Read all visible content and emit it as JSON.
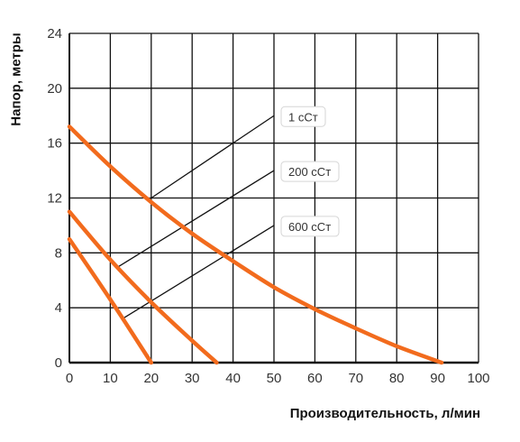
{
  "chart_data": {
    "type": "line",
    "xlabel": "Производительность, л/мин",
    "ylabel": "Напор, метры",
    "xlim": [
      0,
      100
    ],
    "ylim": [
      0,
      24
    ],
    "x_ticks": [
      0,
      10,
      20,
      30,
      40,
      50,
      60,
      70,
      80,
      90,
      100
    ],
    "y_ticks": [
      0,
      4,
      8,
      12,
      16,
      20,
      24
    ],
    "grid": true,
    "line_color": "#f26b1d",
    "series": [
      {
        "name": "1 сСт",
        "x": [
          0,
          10,
          20,
          30,
          40,
          50,
          60,
          70,
          80,
          91
        ],
        "y": [
          17.2,
          14.3,
          11.7,
          9.4,
          7.4,
          5.5,
          3.9,
          2.5,
          1.2,
          0
        ]
      },
      {
        "name": "200 сСт",
        "x": [
          0,
          10,
          20,
          30,
          36
        ],
        "y": [
          11,
          7.5,
          4.4,
          1.6,
          0
        ]
      },
      {
        "name": "600 сСт",
        "x": [
          0,
          10,
          20
        ],
        "y": [
          9,
          4.6,
          0
        ]
      }
    ],
    "labels": [
      {
        "text": "1 сСт",
        "series": "1 сСт",
        "leader_from": [
          20,
          12
        ],
        "leader_to": [
          50,
          18
        ]
      },
      {
        "text": "200 сСт",
        "series": "200 сСт",
        "leader_from": [
          12,
          7
        ],
        "leader_to": [
          50,
          14
        ]
      },
      {
        "text": "600 сСт",
        "series": "600 сСт",
        "leader_from": [
          13,
          3.2
        ],
        "leader_to": [
          50,
          10
        ]
      }
    ]
  }
}
